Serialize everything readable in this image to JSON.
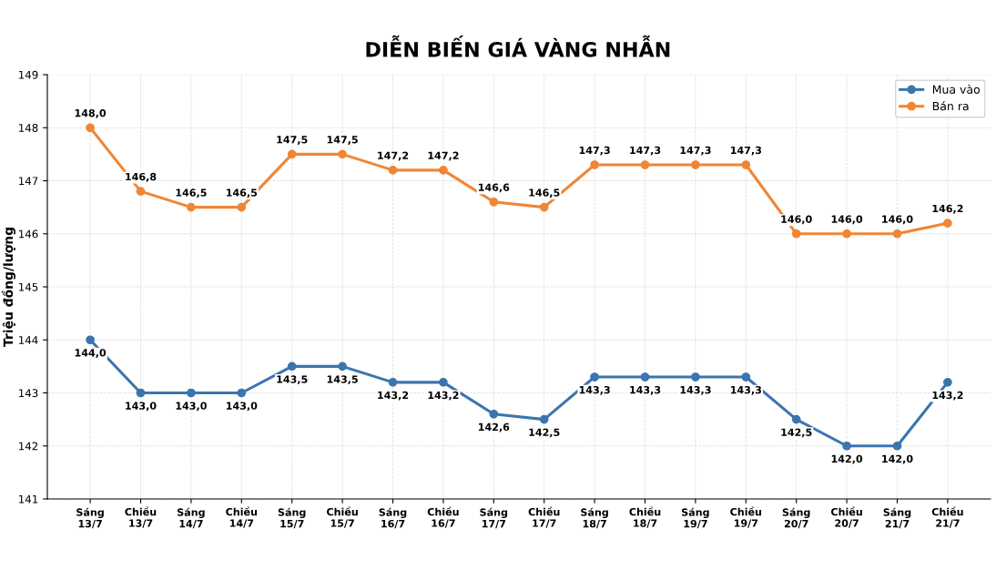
{
  "chart_data": {
    "type": "line",
    "title": "DIỄN BIẾN GIÁ VÀNG NHẪN",
    "ylabel": "Triệu đồng/lượng",
    "categories": [
      "Sáng\n13/7",
      "Chiều\n13/7",
      "Sáng\n14/7",
      "Chiều\n14/7",
      "Sáng\n15/7",
      "Chiều\n15/7",
      "Sáng\n16/7",
      "Chiều\n16/7",
      "Sáng\n17/7",
      "Chiều\n17/7",
      "Sáng\n18/7",
      "Chiều\n18/7",
      "Sáng\n19/7",
      "Chiều\n19/7",
      "Sáng\n20/7",
      "Chiều\n20/7",
      "Sáng\n21/7",
      "Chiều\n21/7"
    ],
    "series": [
      {
        "name": "Mua vào",
        "color": "#3b75af",
        "values": [
          144.0,
          143.0,
          143.0,
          143.0,
          143.5,
          143.5,
          143.2,
          143.2,
          142.6,
          142.5,
          143.3,
          143.3,
          143.3,
          143.3,
          142.5,
          142.0,
          142.0,
          143.2
        ],
        "value_labels": [
          "144,0",
          "143,0",
          "143,0",
          "143,0",
          "143,5",
          "143,5",
          "143,2",
          "143,2",
          "142,6",
          "142,5",
          "143,3",
          "143,3",
          "143,3",
          "143,3",
          "142,5",
          "142,0",
          "142,0",
          "143,2"
        ]
      },
      {
        "name": "Bán ra",
        "color": "#ef8636",
        "values": [
          148.0,
          146.8,
          146.5,
          146.5,
          147.5,
          147.5,
          147.2,
          147.2,
          146.6,
          146.5,
          147.3,
          147.3,
          147.3,
          147.3,
          146.0,
          146.0,
          146.0,
          146.2
        ],
        "value_labels": [
          "148,0",
          "146,8",
          "146,5",
          "146,5",
          "147,5",
          "147,5",
          "147,2",
          "147,2",
          "146,6",
          "146,5",
          "147,3",
          "147,3",
          "147,3",
          "147,3",
          "146,0",
          "146,0",
          "146,0",
          "146,2"
        ]
      }
    ],
    "ylim": [
      141,
      149
    ],
    "yticks": [
      141,
      142,
      143,
      144,
      145,
      146,
      147,
      148,
      149
    ],
    "grid": true,
    "legend": "top right",
    "marker": "circle",
    "line_style": "solid"
  }
}
